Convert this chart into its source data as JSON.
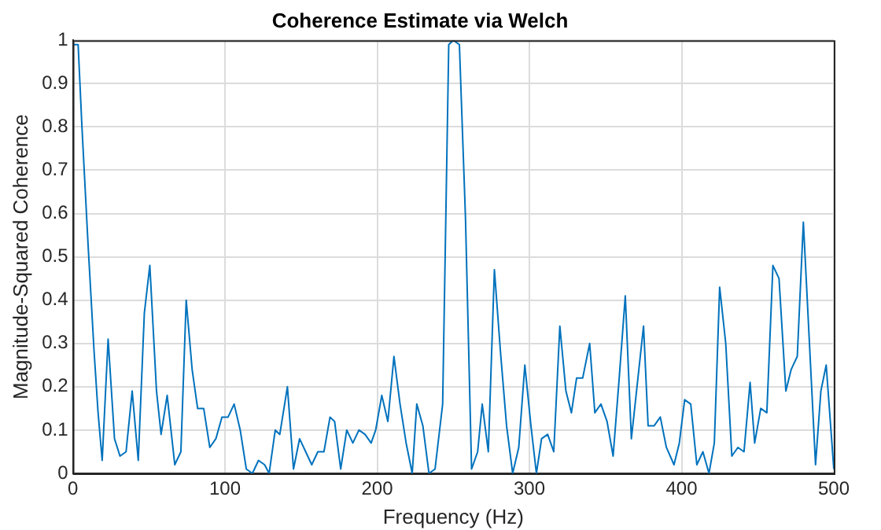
{
  "chart_data": {
    "type": "line",
    "title": "Coherence Estimate via Welch",
    "xlabel": "Frequency (Hz)",
    "ylabel": "Magnitude-Squared Coherence",
    "x": [
      0,
      3.5,
      6,
      10,
      14,
      16.6,
      19.3,
      23.2,
      27.4,
      31,
      35,
      39,
      43,
      47,
      50.6,
      55,
      58,
      62,
      67,
      71,
      74.5,
      78.4,
      82,
      86,
      90,
      94,
      98,
      102,
      106,
      110,
      114,
      118,
      122,
      126,
      129,
      133,
      136,
      141,
      145,
      149,
      153,
      157,
      161,
      165,
      169,
      172,
      176,
      180,
      184,
      188,
      192,
      196,
      199,
      203,
      207,
      211,
      215,
      219,
      223,
      226,
      230,
      234,
      238,
      243,
      247,
      250,
      254,
      258,
      262,
      266,
      269,
      273,
      277,
      281,
      285,
      289,
      293,
      297,
      301,
      304.6,
      308,
      312,
      316,
      320,
      324,
      327.6,
      331,
      335,
      339.6,
      343,
      347,
      351,
      355,
      359,
      363,
      367,
      371,
      375,
      378,
      382,
      386,
      390,
      395,
      398.5,
      402,
      406,
      410,
      414,
      418,
      421.5,
      425,
      429,
      433,
      437,
      441,
      445,
      448,
      452,
      456,
      460,
      464,
      468.5,
      472,
      476,
      480,
      484,
      488,
      491.5,
      495,
      500
    ],
    "series": [
      {
        "color": "#0072bd",
        "values": [
          0.99,
          0.99,
          0.8,
          0.53,
          0.28,
          0.14,
          0.03,
          0.31,
          0.08,
          0.04,
          0.05,
          0.19,
          0.03,
          0.37,
          0.48,
          0.19,
          0.09,
          0.18,
          0.02,
          0.05,
          0.4,
          0.24,
          0.15,
          0.15,
          0.06,
          0.08,
          0.13,
          0.13,
          0.16,
          0.1,
          0.01,
          0,
          0.03,
          0.02,
          0,
          0.1,
          0.09,
          0.2,
          0.01,
          0.08,
          0.05,
          0.02,
          0.05,
          0.05,
          0.13,
          0.12,
          0.01,
          0.1,
          0.07,
          0.1,
          0.09,
          0.07,
          0.1,
          0.18,
          0.12,
          0.27,
          0.16,
          0.07,
          0,
          0.16,
          0.11,
          0,
          0.01,
          0.16,
          0.99,
          1,
          0.99,
          0.59,
          0.01,
          0.05,
          0.16,
          0.05,
          0.47,
          0.28,
          0.11,
          0,
          0.06,
          0.25,
          0.11,
          0,
          0.08,
          0.09,
          0.05,
          0.34,
          0.19,
          0.14,
          0.22,
          0.22,
          0.3,
          0.14,
          0.16,
          0.12,
          0.04,
          0.22,
          0.41,
          0.08,
          0.21,
          0.34,
          0.11,
          0.11,
          0.13,
          0.06,
          0.02,
          0.07,
          0.17,
          0.16,
          0.02,
          0.05,
          0,
          0.07,
          0.43,
          0.3,
          0.04,
          0.06,
          0.05,
          0.21,
          0.07,
          0.15,
          0.14,
          0.48,
          0.45,
          0.19,
          0.24,
          0.27,
          0.58,
          0.3,
          0.02,
          0.19,
          0.25,
          0.01
        ]
      }
    ],
    "xlim": [
      0,
      500
    ],
    "xticks": [
      0,
      100,
      200,
      300,
      400,
      500
    ],
    "ylim": [
      0,
      1
    ],
    "yticks": [
      0,
      0.1,
      0.2,
      0.3,
      0.4,
      0.5,
      0.6,
      0.7,
      0.8,
      0.9,
      1
    ],
    "grid": true,
    "legend": false,
    "marker": "none",
    "line_style": "solid"
  }
}
